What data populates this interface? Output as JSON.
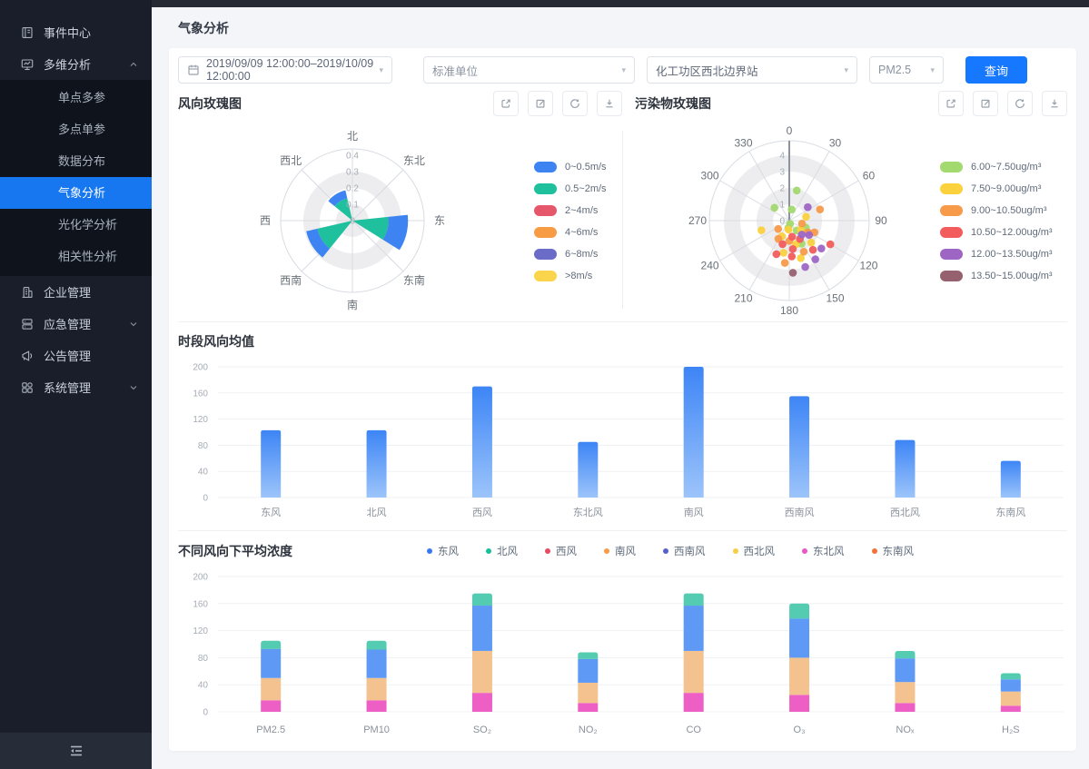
{
  "page": {
    "title": "气象分析"
  },
  "sidebar": {
    "items": [
      {
        "label": "事件中心",
        "icon": "event-center",
        "type": "item"
      },
      {
        "label": "多维分析",
        "icon": "multi-analysis",
        "type": "group",
        "state": "expanded",
        "children": [
          "单点多参",
          "多点单参",
          "数据分布",
          "气象分析",
          "光化学分析",
          "相关性分析"
        ],
        "active_child": "气象分析"
      },
      {
        "label": "企业管理",
        "icon": "enterprise",
        "type": "item"
      },
      {
        "label": "应急管理",
        "icon": "emergency",
        "type": "group",
        "state": "collapsed"
      },
      {
        "label": "公告管理",
        "icon": "announcement",
        "type": "item"
      },
      {
        "label": "系统管理",
        "icon": "system",
        "type": "group",
        "state": "collapsed"
      }
    ]
  },
  "filters": {
    "date_range": "2019/09/09 12:00:00–2019/10/09 12:00:00",
    "unit": "标准单位",
    "station": "化工功区西北边界站",
    "pollutant": "PM2.5",
    "query_label": "查询"
  },
  "panels": {
    "wind_rose_title": "风向玫瑰图",
    "pollutant_rose_title": "污染物玫瑰图",
    "bar_title": "时段风向均值",
    "stack_title": "不同风向下平均浓度"
  },
  "chart_tools": [
    "export",
    "edit",
    "refresh",
    "download"
  ],
  "chart_data": [
    {
      "type": "rose",
      "title": "风向玫瑰图",
      "directions": [
        "北",
        "东北",
        "东",
        "东南",
        "南",
        "西南",
        "西",
        "西北"
      ],
      "radial_ticks": [
        0,
        0.1,
        0.2,
        0.3,
        0.4
      ],
      "legend": [
        {
          "label": "0~0.5m/s",
          "color": "#3d84f2"
        },
        {
          "label": "0.5~2m/s",
          "color": "#1fc09d"
        },
        {
          "label": "2~4m/s",
          "color": "#e6576b"
        },
        {
          "label": "4~6m/s",
          "color": "#f79b45"
        },
        {
          "label": "6~8m/s",
          "color": "#6a6cc8"
        },
        {
          "label": ">8m/s",
          "color": "#f9d44c"
        }
      ],
      "wedges": [
        {
          "direction": "东",
          "segments": [
            {
              "speed": "0.5~2m/s",
              "from": 0,
              "to": 0.22
            },
            {
              "speed": "0~0.5m/s",
              "from": 0.22,
              "to": 0.34
            }
          ]
        },
        {
          "direction": "西南",
          "segments": [
            {
              "speed": "0.5~2m/s",
              "from": 0,
              "to": 0.22
            },
            {
              "speed": "0~0.5m/s",
              "from": 0.22,
              "to": 0.29
            }
          ]
        },
        {
          "direction": "西北",
          "segments": [
            {
              "speed": "0.5~2m/s",
              "from": 0,
              "to": 0.14
            },
            {
              "speed": "0~0.5m/s",
              "from": 0.14,
              "to": 0.19
            }
          ]
        }
      ]
    },
    {
      "type": "polar-scatter",
      "title": "污染物玫瑰图",
      "angle_ticks": [
        0,
        30,
        60,
        90,
        120,
        150,
        180,
        210,
        240,
        270,
        300,
        330
      ],
      "radial_ticks": [
        0,
        1,
        2,
        3,
        4
      ],
      "legend": [
        {
          "label": "6.00~7.50ug/m³",
          "color": "#a3d96f"
        },
        {
          "label": "7.50~9.00ug/m³",
          "color": "#fbd13d"
        },
        {
          "label": "9.00~10.50ug/m³",
          "color": "#f79a4a"
        },
        {
          "label": "10.50~12.00ug/m³",
          "color": "#f25c5c"
        },
        {
          "label": "12.00~13.50ug/m³",
          "color": "#9d66c4"
        },
        {
          "label": "13.50~15.00ug/m³",
          "color": "#96616f"
        }
      ],
      "points": [
        {
          "a": 14,
          "r": 1.9,
          "c": 0
        },
        {
          "a": 311,
          "r": 1.2,
          "c": 0
        },
        {
          "a": 12,
          "r": 0.7,
          "c": 0
        },
        {
          "a": 166,
          "r": 0.2,
          "c": 0
        },
        {
          "a": 143,
          "r": 0.75,
          "c": 0
        },
        {
          "a": 113,
          "r": 1.1,
          "c": 0
        },
        {
          "a": 152,
          "r": 1.6,
          "c": 0
        },
        {
          "a": 187,
          "r": 0.45,
          "c": 0
        },
        {
          "a": 77,
          "r": 1.05,
          "c": 1
        },
        {
          "a": 251,
          "r": 1.8,
          "c": 1
        },
        {
          "a": 185,
          "r": 0.55,
          "c": 1
        },
        {
          "a": 135,
          "r": 1.9,
          "c": 1
        },
        {
          "a": 164,
          "r": 1.5,
          "c": 1
        },
        {
          "a": 190,
          "r": 2.0,
          "c": 1
        },
        {
          "a": 163,
          "r": 2.4,
          "c": 1
        },
        {
          "a": 128,
          "r": 0.9,
          "c": 1
        },
        {
          "a": 205,
          "r": 1.05,
          "c": 1
        },
        {
          "a": 70,
          "r": 2.0,
          "c": 2
        },
        {
          "a": 103,
          "r": 0.8,
          "c": 2
        },
        {
          "a": 233,
          "r": 0.85,
          "c": 2
        },
        {
          "a": 115,
          "r": 1.7,
          "c": 2
        },
        {
          "a": 180,
          "r": 1.25,
          "c": 2
        },
        {
          "a": 211,
          "r": 1.3,
          "c": 2
        },
        {
          "a": 155,
          "r": 2.1,
          "c": 2
        },
        {
          "a": 186,
          "r": 2.6,
          "c": 2
        },
        {
          "a": 122,
          "r": 1.35,
          "c": 2
        },
        {
          "a": 170,
          "r": 1.0,
          "c": 3
        },
        {
          "a": 150,
          "r": 1.3,
          "c": 3
        },
        {
          "a": 196,
          "r": 1.5,
          "c": 3
        },
        {
          "a": 176,
          "r": 2.2,
          "c": 3
        },
        {
          "a": 141,
          "r": 2.3,
          "c": 3
        },
        {
          "a": 120,
          "r": 2.9,
          "c": 3
        },
        {
          "a": 201,
          "r": 2.2,
          "c": 3
        },
        {
          "a": 173,
          "r": 1.75,
          "c": 3
        },
        {
          "a": 54,
          "r": 1.4,
          "c": 4
        },
        {
          "a": 126,
          "r": 1.5,
          "c": 4
        },
        {
          "a": 131,
          "r": 2.6,
          "c": 4
        },
        {
          "a": 146,
          "r": 2.85,
          "c": 4
        },
        {
          "a": 161,
          "r": 3.0,
          "c": 4
        },
        {
          "a": 138,
          "r": 1.15,
          "c": 4
        },
        {
          "a": 176,
          "r": 3.2,
          "c": 5
        }
      ]
    },
    {
      "type": "bar",
      "title": "时段风向均值",
      "categories": [
        "东风",
        "北风",
        "西风",
        "东北风",
        "南风",
        "西南风",
        "西北风",
        "东南风"
      ],
      "values": [
        103,
        103,
        170,
        85,
        200,
        155,
        88,
        56
      ],
      "ylim": [
        0,
        200
      ],
      "yticks": [
        0,
        40,
        80,
        120,
        160,
        200
      ],
      "bar_gradient": [
        "#3d85f6",
        "#9cc4fa"
      ]
    },
    {
      "type": "stacked-bar",
      "title": "不同风向下平均浓度",
      "categories": [
        "PM2.5",
        "PM10",
        "SO₂",
        "NO₂",
        "CO",
        "O₃",
        "NOₓ",
        "H₂S"
      ],
      "ylim": [
        0,
        200
      ],
      "yticks": [
        0,
        40,
        80,
        120,
        160,
        200
      ],
      "legend": [
        {
          "name": "东风",
          "color": "#3b78f0"
        },
        {
          "name": "北风",
          "color": "#17bf9a"
        },
        {
          "name": "西风",
          "color": "#e84a5f"
        },
        {
          "name": "南风",
          "color": "#f79b45"
        },
        {
          "name": "西南风",
          "color": "#5560c8"
        },
        {
          "name": "西北风",
          "color": "#f6ce47"
        },
        {
          "name": "东北风",
          "color": "#e857c5"
        },
        {
          "name": "东南风",
          "color": "#f4713c"
        }
      ],
      "series": [
        {
          "name": "东北风",
          "color": "#ee5fc5",
          "values": [
            17,
            17,
            28,
            13,
            28,
            25,
            13,
            9
          ]
        },
        {
          "name": "南风",
          "color": "#f3c28e",
          "values": [
            33,
            33,
            62,
            30,
            62,
            55,
            31,
            21
          ]
        },
        {
          "name": "东风",
          "color": "#5e9af5",
          "values": [
            43,
            42,
            67,
            35,
            67,
            58,
            35,
            18
          ]
        },
        {
          "name": "北风",
          "color": "#53ccb1",
          "values": [
            12,
            13,
            18,
            10,
            18,
            22,
            11,
            9
          ]
        }
      ]
    }
  ]
}
